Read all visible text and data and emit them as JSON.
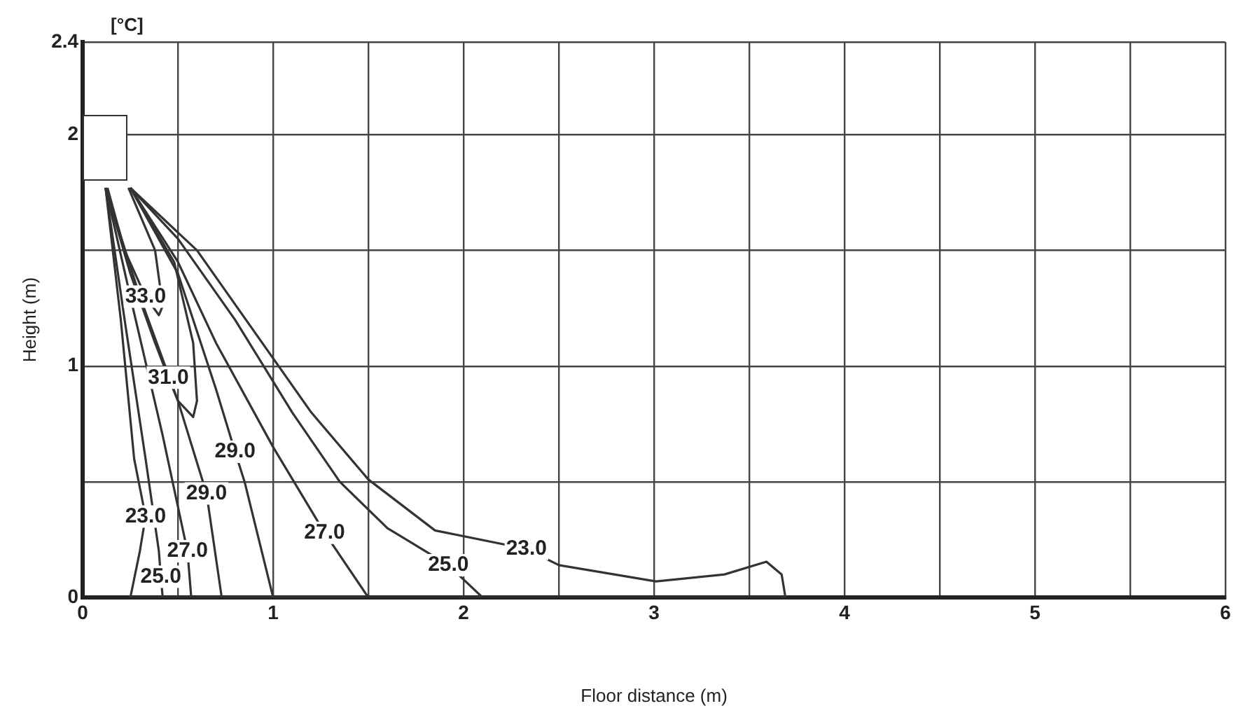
{
  "chart_data": {
    "type": "line",
    "xlabel": "Floor distance (m)",
    "ylabel": "Height (m)",
    "xlim": [
      0,
      6
    ],
    "xticks": [
      0,
      {
        "value": 0.5,
        "label": null
      },
      1,
      {
        "value": 1.5,
        "label": null
      },
      2,
      {
        "value": 2.5,
        "label": null
      },
      3,
      {
        "value": 3.5,
        "label": null
      },
      4,
      {
        "value": 4.5,
        "label": null
      },
      5,
      {
        "value": 5.5,
        "label": null
      },
      6
    ],
    "ylim": [
      0,
      2.4
    ],
    "yticks": [
      0,
      {
        "value": 0.5,
        "label": null
      },
      1,
      {
        "value": 1.5,
        "label": null
      },
      2,
      2.4
    ],
    "grid": true,
    "legend": false,
    "series": [
      {
        "color": "#333333",
        "x": [
          0.13,
          0.22,
          0.33,
          0.4,
          0.42,
          0.38,
          0.24
        ],
        "values": [
          1.77,
          1.5,
          1.3,
          1.22,
          1.26,
          1.5,
          1.77
        ]
      },
      {
        "color": "#333333",
        "x": [
          0.12,
          0.25,
          0.38,
          0.45,
          0.5,
          0.58,
          0.6,
          0.58,
          0.48,
          0.25
        ],
        "values": [
          1.77,
          1.4,
          1.1,
          0.95,
          0.85,
          0.78,
          0.85,
          1.1,
          1.45,
          1.77
        ]
      },
      {
        "color": "#333333",
        "x": [
          0.12,
          0.3,
          0.5,
          0.65,
          0.73,
          1.0,
          0.85,
          0.8,
          0.7,
          0.5,
          0.25
        ],
        "values": [
          1.77,
          1.3,
          0.85,
          0.45,
          0,
          0,
          0.5,
          0.63,
          0.9,
          1.4,
          1.77
        ]
      },
      {
        "color": "#333333",
        "x": [
          0.12,
          0.25,
          0.42,
          0.55,
          0.57,
          1.5,
          1.27,
          1.0,
          0.7,
          0.5,
          0.25
        ],
        "values": [
          1.77,
          1.3,
          0.7,
          0.2,
          0,
          0,
          0.28,
          0.65,
          1.1,
          1.45,
          1.77
        ]
      },
      {
        "color": "#333333",
        "x": [
          0.12,
          0.22,
          0.33,
          0.4,
          0.41,
          0.42,
          2.1,
          1.92,
          1.6,
          1.35,
          1.1,
          0.8,
          0.5,
          0.25
        ],
        "values": [
          1.77,
          1.2,
          0.6,
          0.2,
          0.09,
          0,
          0,
          0.14,
          0.3,
          0.5,
          0.8,
          1.2,
          1.55,
          1.77
        ]
      },
      {
        "color": "#333333",
        "x": [
          0.12,
          0.2,
          0.27,
          0.33,
          0.3,
          0.25,
          3.69,
          3.67,
          3.59,
          3.37,
          3.01,
          2.5,
          2.33,
          1.85,
          1.5,
          1.2,
          0.9,
          0.6,
          0.25
        ],
        "values": [
          1.77,
          1.2,
          0.6,
          0.35,
          0.2,
          0,
          0,
          0.1,
          0.155,
          0.1,
          0.07,
          0.14,
          0.21,
          0.29,
          0.51,
          0.8,
          1.15,
          1.5,
          1.77
        ]
      }
    ],
    "annotations": [
      "[°C]",
      {
        "text": "33.0",
        "x": 0.33,
        "y": 1.3
      },
      {
        "text": "31.0",
        "x": 0.45,
        "y": 0.95
      },
      {
        "text": "29.0",
        "x": 0.8,
        "y": 0.63
      },
      {
        "text": "29.0",
        "x": 0.65,
        "y": 0.45
      },
      {
        "text": "27.0",
        "x": 0.55,
        "y": 0.2
      },
      {
        "text": "27.0",
        "x": 1.27,
        "y": 0.28
      },
      {
        "text": "25.0",
        "x": 0.41,
        "y": 0.09
      },
      {
        "text": "25.0",
        "x": 1.92,
        "y": 0.14
      },
      {
        "text": "23.0",
        "x": 0.33,
        "y": 0.35
      },
      {
        "text": "23.0",
        "x": 2.33,
        "y": 0.21
      }
    ]
  }
}
